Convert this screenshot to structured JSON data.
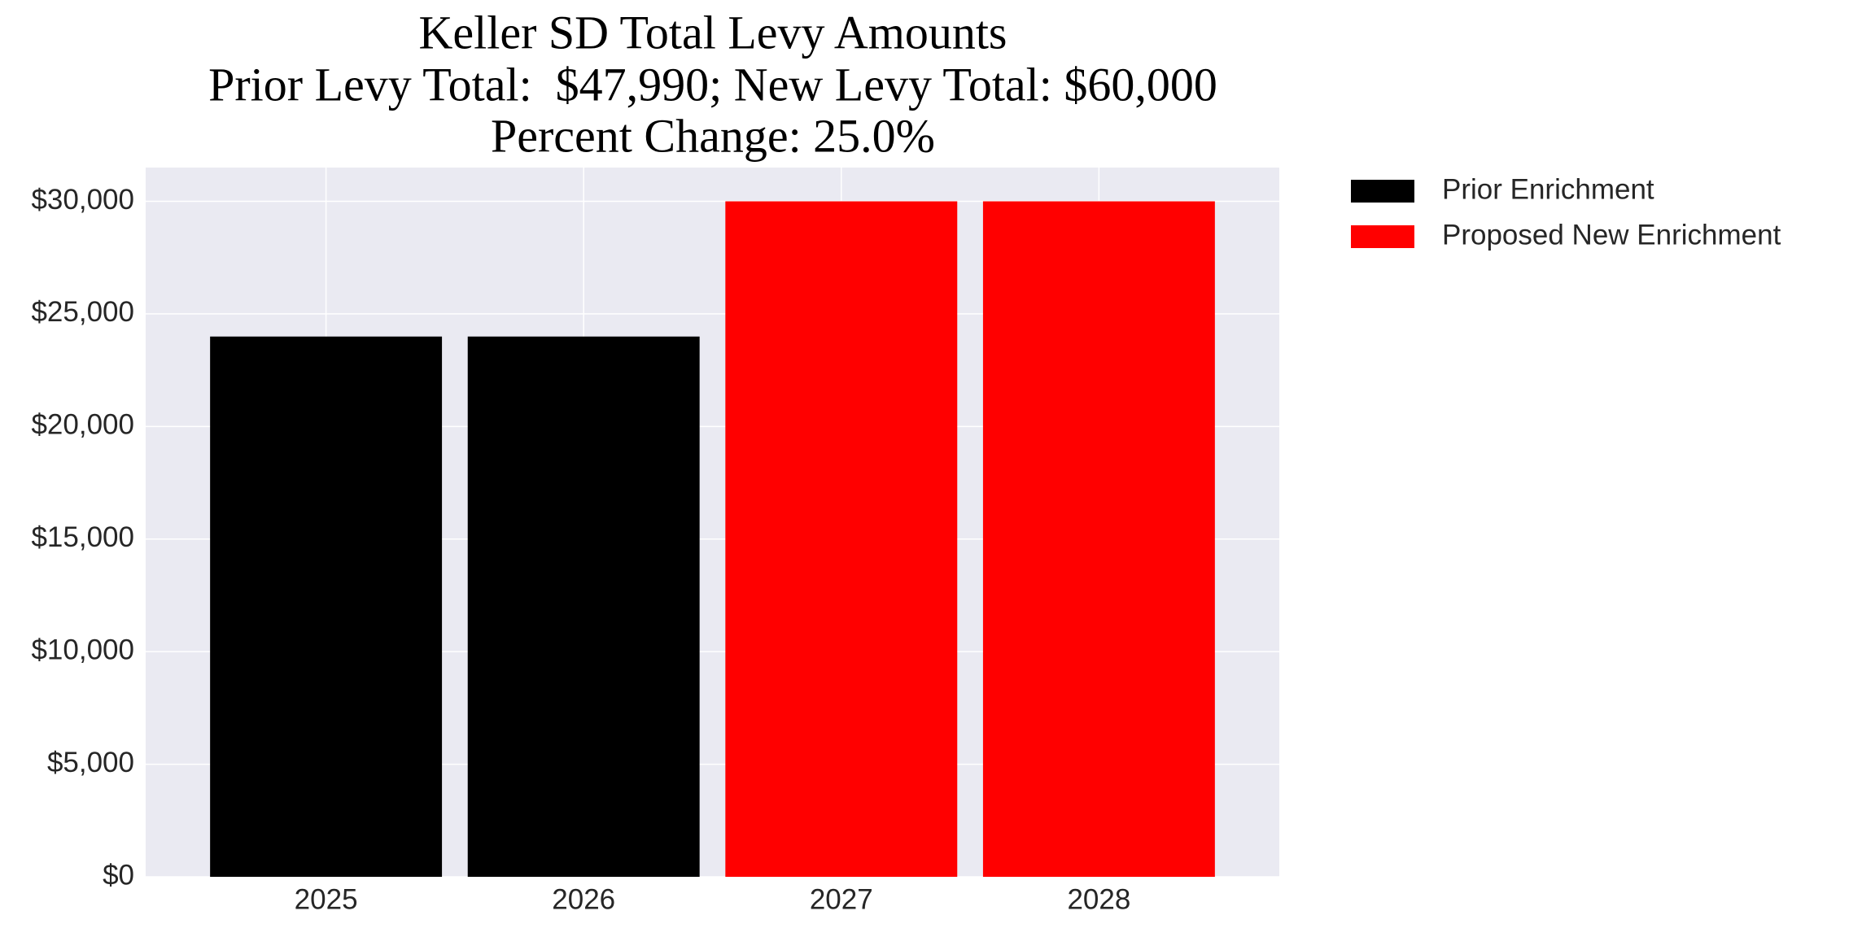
{
  "chart_data": {
    "type": "bar",
    "title": "Keller SD Total Levy Amounts",
    "subtitle": [
      "Prior Levy Total:  $47,990; New Levy Total: $60,000",
      "Percent Change: 25.0%"
    ],
    "categories": [
      "2025",
      "2026",
      "2027",
      "2028"
    ],
    "series": [
      {
        "name": "Prior Enrichment",
        "color": "#000000",
        "values": [
          23995,
          23995,
          null,
          null
        ]
      },
      {
        "name": "Proposed New Enrichment",
        "color": "#ff0000",
        "values": [
          null,
          null,
          30000,
          30000
        ]
      }
    ],
    "ylim": [
      0,
      31500
    ],
    "yticks": [
      {
        "value": 0,
        "label": "$0"
      },
      {
        "value": 5000,
        "label": "$5,000"
      },
      {
        "value": 10000,
        "label": "$10,000"
      },
      {
        "value": 15000,
        "label": "$15,000"
      },
      {
        "value": 20000,
        "label": "$20,000"
      },
      {
        "value": 25000,
        "label": "$25,000"
      },
      {
        "value": 30000,
        "label": "$30,000"
      }
    ],
    "grid": true,
    "background": "#eaeaf2",
    "legend": "outside-right"
  }
}
